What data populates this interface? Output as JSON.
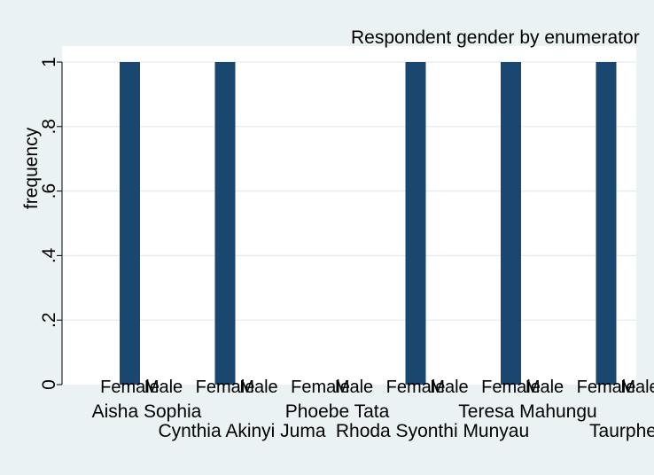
{
  "chart_data": {
    "type": "bar",
    "title": "Respondent gender by enumerator",
    "ylabel": "frequency",
    "xlabel": "",
    "ylim": [
      0,
      1.0
    ],
    "yticks": [
      0,
      0.2,
      0.4,
      0.6,
      0.8,
      1.0
    ],
    "ytick_labels": [
      "0",
      ".2",
      ".4",
      ".6",
      ".8",
      "1"
    ],
    "grid": true,
    "bar_color": "#1a476f",
    "plot_background": "#ffffff",
    "page_background": "#eaf2f3",
    "subcategories": [
      "Female",
      "Male"
    ],
    "groups": [
      {
        "name": "Aisha Sophia",
        "values": [
          1,
          0
        ]
      },
      {
        "name": "Cynthia Akinyi Juma",
        "values": [
          1,
          0
        ]
      },
      {
        "name": "Phoebe Tata",
        "values": [
          0,
          0
        ]
      },
      {
        "name": "Rhoda Syonthi Munyau",
        "values": [
          1,
          0
        ]
      },
      {
        "name": "Teresa Mahungu",
        "values": [
          1,
          0
        ]
      },
      {
        "name": "Taurphe",
        "values": [
          1,
          0
        ]
      }
    ]
  }
}
